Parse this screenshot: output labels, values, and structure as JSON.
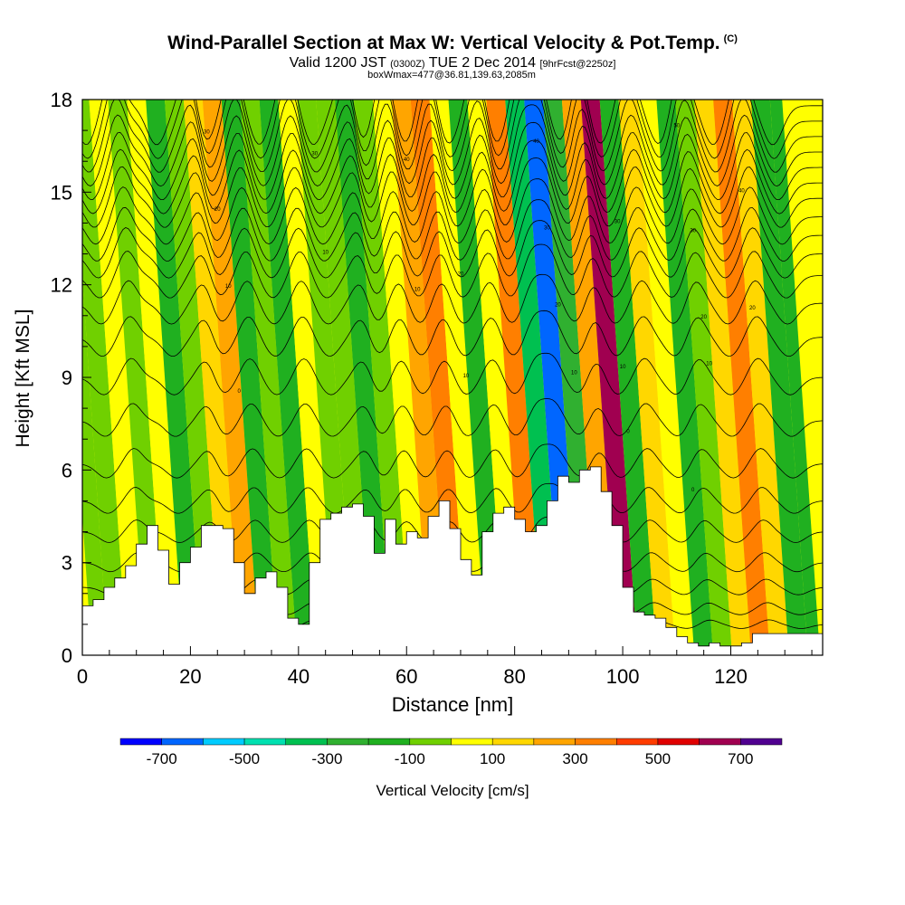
{
  "header": {
    "title": "Wind-Parallel Section at Max W: Vertical Velocity & Pot.Temp.",
    "copyright": "(C)",
    "subtitle_a": "Valid 1200 JST",
    "subtitle_b": "(0300Z)",
    "subtitle_c": "TUE 2 Dec 2014",
    "subtitle_d": "[9hrFcst@2250z]",
    "subtitle2": "boxWmax=477@36.81,139.63,2085m"
  },
  "chart_data": {
    "type": "heatmap",
    "xlabel": "Distance [nm]",
    "ylabel": "Height [Kft MSL]",
    "xlim": [
      0,
      137
    ],
    "ylim": [
      0,
      18
    ],
    "x_ticks": [
      0,
      20,
      40,
      60,
      80,
      100,
      120
    ],
    "y_ticks": [
      0,
      3,
      6,
      9,
      12,
      15,
      18
    ],
    "colorbar": {
      "label": "Vertical Velocity [cm/s]",
      "tick_labels": [
        "-700",
        "-500",
        "-300",
        "-100",
        "100",
        "300",
        "500",
        "700"
      ],
      "bins": [
        -800,
        -700,
        -600,
        -500,
        -400,
        -300,
        -200,
        -100,
        0,
        100,
        200,
        300,
        400,
        500,
        600,
        700,
        800
      ],
      "colors": [
        "#0000ff",
        "#0066ff",
        "#00ccff",
        "#00e0b0",
        "#00c050",
        "#30b030",
        "#20b020",
        "#70d000",
        "#ffff00",
        "#ffd700",
        "#ffa500",
        "#ff7f00",
        "#ff3c00",
        "#e00000",
        "#a00050",
        "#500090"
      ]
    },
    "vertical_velocity_bands": [
      {
        "x": 0.5,
        "w": 80
      },
      {
        "x": 3,
        "w": -30
      },
      {
        "x": 6.5,
        "w": -80
      },
      {
        "x": 10,
        "w": 60
      },
      {
        "x": 13.5,
        "w": -60
      },
      {
        "x": 17,
        "w": 80
      },
      {
        "x": 20.5,
        "w": -150
      },
      {
        "x": 24,
        "w": -100
      },
      {
        "x": 27.5,
        "w": 150
      },
      {
        "x": 31,
        "w": 280
      },
      {
        "x": 34.5,
        "w": -120
      },
      {
        "x": 38,
        "w": -80
      },
      {
        "x": 41.5,
        "w": -150
      },
      {
        "x": 45,
        "w": 60
      },
      {
        "x": 48.5,
        "w": -50
      },
      {
        "x": 52,
        "w": -100
      },
      {
        "x": 55.5,
        "w": -200
      },
      {
        "x": 59,
        "w": -100
      },
      {
        "x": 62.5,
        "w": 60
      },
      {
        "x": 66,
        "w": 200
      },
      {
        "x": 69.5,
        "w": 350
      },
      {
        "x": 73,
        "w": 80
      },
      {
        "x": 76.5,
        "w": -150
      },
      {
        "x": 80,
        "w": 80
      },
      {
        "x": 83.5,
        "w": 300
      },
      {
        "x": 87,
        "w": -350
      },
      {
        "x": 90.5,
        "w": -650
      },
      {
        "x": 94,
        "w": -300
      },
      {
        "x": 97.5,
        "w": 250
      },
      {
        "x": 101,
        "w": 620
      },
      {
        "x": 104.5,
        "w": -120
      },
      {
        "x": 108,
        "w": 120
      },
      {
        "x": 111.5,
        "w": 50
      },
      {
        "x": 115,
        "w": -130
      },
      {
        "x": 118.5,
        "w": -80
      },
      {
        "x": 122,
        "w": 150
      },
      {
        "x": 125.5,
        "w": 350
      },
      {
        "x": 129,
        "w": 120
      },
      {
        "x": 132.5,
        "w": -160
      },
      {
        "x": 136,
        "w": -120
      }
    ],
    "terrain_kft": [
      {
        "x": 0,
        "h": 1.6
      },
      {
        "x": 2,
        "h": 1.8
      },
      {
        "x": 4,
        "h": 2.2
      },
      {
        "x": 6,
        "h": 2.5
      },
      {
        "x": 8,
        "h": 2.9
      },
      {
        "x": 10,
        "h": 3.6
      },
      {
        "x": 12,
        "h": 4.2
      },
      {
        "x": 14,
        "h": 3.4
      },
      {
        "x": 16,
        "h": 2.3
      },
      {
        "x": 18,
        "h": 3.0
      },
      {
        "x": 20,
        "h": 3.5
      },
      {
        "x": 22,
        "h": 4.2
      },
      {
        "x": 24,
        "h": 4.2
      },
      {
        "x": 26,
        "h": 4.1
      },
      {
        "x": 28,
        "h": 3.0
      },
      {
        "x": 30,
        "h": 2.0
      },
      {
        "x": 32,
        "h": 2.5
      },
      {
        "x": 34,
        "h": 2.7
      },
      {
        "x": 36,
        "h": 2.2
      },
      {
        "x": 38,
        "h": 1.2
      },
      {
        "x": 40,
        "h": 1.0
      },
      {
        "x": 42,
        "h": 3.0
      },
      {
        "x": 44,
        "h": 4.4
      },
      {
        "x": 46,
        "h": 4.6
      },
      {
        "x": 48,
        "h": 4.8
      },
      {
        "x": 50,
        "h": 4.9
      },
      {
        "x": 52,
        "h": 4.5
      },
      {
        "x": 54,
        "h": 3.3
      },
      {
        "x": 56,
        "h": 4.4
      },
      {
        "x": 58,
        "h": 3.6
      },
      {
        "x": 60,
        "h": 4.0
      },
      {
        "x": 62,
        "h": 3.8
      },
      {
        "x": 64,
        "h": 4.5
      },
      {
        "x": 66,
        "h": 5.0
      },
      {
        "x": 68,
        "h": 4.1
      },
      {
        "x": 70,
        "h": 3.1
      },
      {
        "x": 72,
        "h": 2.6
      },
      {
        "x": 74,
        "h": 4.0
      },
      {
        "x": 76,
        "h": 4.6
      },
      {
        "x": 78,
        "h": 4.8
      },
      {
        "x": 80,
        "h": 4.4
      },
      {
        "x": 82,
        "h": 4.0
      },
      {
        "x": 84,
        "h": 4.2
      },
      {
        "x": 86,
        "h": 5.0
      },
      {
        "x": 88,
        "h": 5.8
      },
      {
        "x": 90,
        "h": 5.6
      },
      {
        "x": 92,
        "h": 6.0
      },
      {
        "x": 94,
        "h": 6.1
      },
      {
        "x": 96,
        "h": 5.3
      },
      {
        "x": 98,
        "h": 4.2
      },
      {
        "x": 100,
        "h": 2.2
      },
      {
        "x": 102,
        "h": 1.4
      },
      {
        "x": 104,
        "h": 1.3
      },
      {
        "x": 106,
        "h": 1.2
      },
      {
        "x": 108,
        "h": 0.9
      },
      {
        "x": 110,
        "h": 0.6
      },
      {
        "x": 112,
        "h": 0.4
      },
      {
        "x": 114,
        "h": 0.3
      },
      {
        "x": 116,
        "h": 0.4
      },
      {
        "x": 118,
        "h": 0.3
      },
      {
        "x": 120,
        "h": 0.3
      },
      {
        "x": 122,
        "h": 0.4
      },
      {
        "x": 124,
        "h": 0.7
      },
      {
        "x": 126,
        "h": 0.7
      },
      {
        "x": 128,
        "h": 0.7
      },
      {
        "x": 130,
        "h": 0.7
      },
      {
        "x": 132,
        "h": 0.7
      },
      {
        "x": 134,
        "h": 0.7
      },
      {
        "x": 137,
        "h": 0.7
      }
    ],
    "potential_temperature": {
      "unit": "K",
      "levels_kft": [
        1,
        1.5,
        2.2,
        3,
        4,
        5,
        6.2,
        7.6,
        9,
        10.3,
        11.4,
        12.3,
        13,
        13.6,
        14.2,
        14.8,
        15.3,
        15.8,
        16.3,
        16.8,
        17.3,
        17.8
      ],
      "wave_crests_nm": [
        11,
        25,
        33,
        43,
        54,
        61,
        69,
        78,
        86,
        89,
        97,
        106,
        116,
        127
      ],
      "wave_troughs_nm": [
        6,
        19,
        28,
        38,
        48,
        57,
        65,
        73,
        82,
        94,
        101,
        112,
        122,
        133
      ]
    },
    "contour_labels": [
      {
        "x": 23,
        "y": 16.9,
        "text": "30"
      },
      {
        "x": 25,
        "y": 14.4,
        "text": "20"
      },
      {
        "x": 27,
        "y": 11.9,
        "text": "10"
      },
      {
        "x": 29,
        "y": 8.5,
        "text": "0"
      },
      {
        "x": 43,
        "y": 16.2,
        "text": "30"
      },
      {
        "x": 45,
        "y": 13.0,
        "text": "10"
      },
      {
        "x": 60,
        "y": 16.0,
        "text": "40"
      },
      {
        "x": 62,
        "y": 11.8,
        "text": "10"
      },
      {
        "x": 70,
        "y": 12.3,
        "text": "20"
      },
      {
        "x": 71,
        "y": 9.0,
        "text": "10"
      },
      {
        "x": 84,
        "y": 16.6,
        "text": "40"
      },
      {
        "x": 86,
        "y": 13.8,
        "text": "30"
      },
      {
        "x": 88,
        "y": 11.3,
        "text": "20"
      },
      {
        "x": 91,
        "y": 9.1,
        "text": "10"
      },
      {
        "x": 99,
        "y": 14.0,
        "text": "30"
      },
      {
        "x": 100,
        "y": 9.3,
        "text": "10"
      },
      {
        "x": 101,
        "y": 7.2,
        "text": "0"
      },
      {
        "x": 110,
        "y": 17.1,
        "text": "50"
      },
      {
        "x": 113,
        "y": 13.7,
        "text": "30"
      },
      {
        "x": 115,
        "y": 10.9,
        "text": "20"
      },
      {
        "x": 116,
        "y": 9.4,
        "text": "10"
      },
      {
        "x": 113,
        "y": 5.3,
        "text": "0"
      },
      {
        "x": 122,
        "y": 15.0,
        "text": "40"
      },
      {
        "x": 124,
        "y": 11.2,
        "text": "20"
      }
    ]
  }
}
